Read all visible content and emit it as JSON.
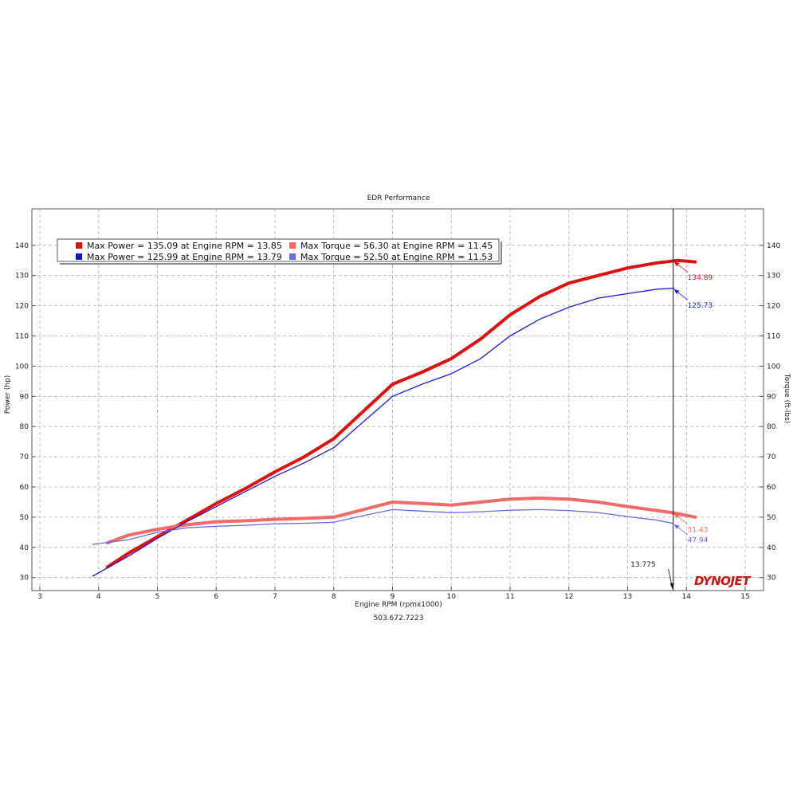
{
  "chart_data": {
    "type": "line",
    "title": "EDR Performance",
    "xlabel": "Engine RPM (rpmx1000)",
    "ylabel_left": "Power (hp)",
    "ylabel_right": "Torque (ft-lbs)",
    "footer": "503.672.7223",
    "brand": "DYNOJET",
    "xlim": [
      3,
      15
    ],
    "ylim": [
      20,
      145
    ],
    "x_ticks": [
      3,
      4,
      5,
      6,
      7,
      8,
      9,
      10,
      11,
      12,
      13,
      14,
      15
    ],
    "y_ticks": [
      30,
      40,
      50,
      60,
      70,
      80,
      90,
      100,
      110,
      120,
      130,
      140
    ],
    "grid": true,
    "legend_position": "top-left",
    "legend": [
      {
        "color": "#e01010",
        "text": "Max Power = 135.09 at Engine RPM = 13.85"
      },
      {
        "color": "#f06a6a",
        "text": "Max Torque = 56.30 at Engine RPM = 11.45"
      },
      {
        "color": "#1010d8",
        "text": "Max Power = 125.99 at Engine RPM = 13.79"
      },
      {
        "color": "#6a6ae8",
        "text": "Max Torque = 52.50 at Engine RPM = 11.53"
      }
    ],
    "cursor_x": 13.775,
    "cursor_label": "13.775",
    "series": [
      {
        "color": "#e01010",
        "width": 4,
        "x": [
          4.15,
          4.5,
          5.0,
          5.5,
          6.0,
          6.5,
          7.0,
          7.5,
          8.0,
          8.5,
          9.0,
          9.5,
          10.0,
          10.5,
          11.0,
          11.5,
          12.0,
          12.5,
          13.0,
          13.5,
          13.85,
          14.15
        ],
        "y": [
          33.5,
          38.0,
          43.5,
          49.0,
          54.5,
          59.5,
          65.0,
          70.0,
          76.0,
          85.0,
          94.0,
          98.0,
          102.5,
          109.0,
          117.0,
          123.0,
          127.5,
          130.0,
          132.5,
          134.2,
          135.0,
          134.5
        ]
      },
      {
        "color": "#f06a6a",
        "width": 4,
        "x": [
          4.15,
          4.5,
          5.0,
          5.5,
          6.0,
          6.5,
          7.0,
          7.5,
          8.0,
          8.5,
          9.0,
          9.5,
          10.0,
          10.5,
          11.0,
          11.5,
          12.0,
          12.5,
          13.0,
          13.5,
          13.775,
          14.15
        ],
        "y": [
          41.5,
          44.0,
          46.0,
          47.5,
          48.5,
          48.8,
          49.3,
          49.6,
          50.0,
          52.5,
          55.0,
          54.5,
          54.0,
          55.0,
          56.0,
          56.3,
          56.0,
          55.0,
          53.5,
          52.2,
          51.43,
          50.0
        ]
      },
      {
        "color": "#1a1ad8",
        "width": 1.3,
        "x": [
          3.9,
          4.5,
          5.0,
          5.5,
          6.0,
          6.5,
          7.0,
          7.5,
          8.0,
          8.5,
          9.0,
          9.5,
          10.0,
          10.5,
          11.0,
          11.5,
          12.0,
          12.5,
          13.0,
          13.5,
          13.79
        ],
        "y": [
          30.5,
          37.0,
          43.0,
          48.5,
          53.5,
          58.5,
          63.5,
          68.0,
          73.0,
          81.5,
          90.0,
          94.0,
          97.5,
          102.5,
          110.0,
          115.5,
          119.5,
          122.5,
          124.0,
          125.5,
          125.8
        ]
      },
      {
        "color": "#6a6ae8",
        "width": 1.3,
        "x": [
          3.9,
          4.5,
          5.0,
          5.5,
          6.0,
          6.5,
          7.0,
          7.5,
          8.0,
          8.5,
          9.0,
          9.5,
          10.0,
          10.5,
          11.0,
          11.5,
          12.0,
          12.5,
          13.0,
          13.5,
          13.775
        ],
        "y": [
          41.0,
          42.5,
          45.0,
          46.5,
          47.0,
          47.3,
          47.8,
          48.0,
          48.3,
          50.5,
          52.5,
          52.0,
          51.5,
          51.8,
          52.3,
          52.5,
          52.2,
          51.5,
          50.2,
          49.0,
          47.94
        ]
      }
    ],
    "callouts": [
      {
        "color": "#e01010",
        "x": 13.775,
        "y": 134.89,
        "text": "134.89"
      },
      {
        "color": "#1a1ad8",
        "x": 13.775,
        "y": 125.73,
        "text": "125.73"
      },
      {
        "color": "#f06a6a",
        "x": 13.775,
        "y": 51.43,
        "text": "51.43"
      },
      {
        "color": "#6a6ae8",
        "x": 13.775,
        "y": 47.94,
        "text": "47.94"
      }
    ]
  }
}
